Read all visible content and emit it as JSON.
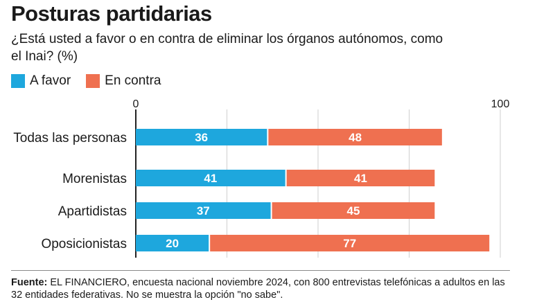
{
  "title": "Posturas partidarias",
  "subtitle": "¿Está usted a favor o en contra de eliminar los órganos autónomos, como el Inai? (%)",
  "legend": [
    {
      "label": "A favor",
      "color": "#1ea7dd"
    },
    {
      "label": "En contra",
      "color": "#ef7050"
    }
  ],
  "source": {
    "label": "Fuente:",
    "text": " EL FINANCIERO, encuesta nacional noviembre 2024, con 800 entrevistas telefónicas a adultos en las 32 entidades federativas. No se muestra la opción \"no sabe\"."
  },
  "chart_data": {
    "type": "bar",
    "orientation": "horizontal",
    "stacked": true,
    "title": "Posturas partidarias",
    "categories": [
      "Todas las personas",
      "Morenistas",
      "Apartidistas",
      "Oposicionistas"
    ],
    "series": [
      {
        "name": "A favor",
        "values": [
          36,
          41,
          37,
          20
        ],
        "color": "#1ea7dd"
      },
      {
        "name": "En contra",
        "values": [
          48,
          41,
          45,
          77
        ],
        "color": "#ef7050"
      }
    ],
    "xlim": [
      0,
      100
    ],
    "xticks": [
      {
        "value": 0,
        "label": "0"
      },
      {
        "value": 100,
        "label": "100"
      }
    ],
    "grid": true,
    "legend_position": "top-left"
  }
}
